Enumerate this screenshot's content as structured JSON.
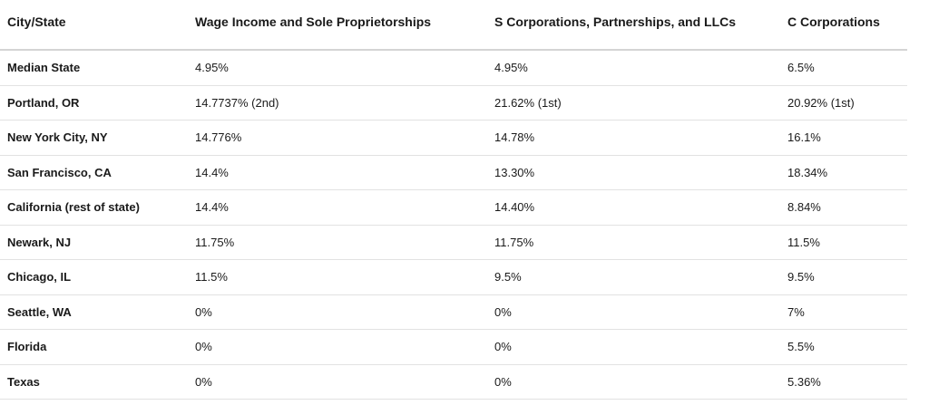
{
  "table": {
    "columns": [
      "City/State",
      "Wage Income and Sole Proprietorships",
      "S Corporations, Partnerships, and LLCs",
      "C Corporations"
    ],
    "rows": [
      [
        "Median State",
        "4.95%",
        "4.95%",
        "6.5%"
      ],
      [
        "Portland, OR",
        "14.7737% (2nd)",
        "21.62% (1st)",
        "20.92% (1st)"
      ],
      [
        "New York City, NY",
        "14.776%",
        "14.78%",
        "16.1%"
      ],
      [
        "San Francisco, CA",
        "14.4%",
        "13.30%",
        "18.34%"
      ],
      [
        "California (rest of state)",
        "14.4%",
        "14.40%",
        "8.84%"
      ],
      [
        "Newark, NJ",
        "11.75%",
        "11.75%",
        "11.5%"
      ],
      [
        "Chicago, IL",
        "11.5%",
        "9.5%",
        "9.5%"
      ],
      [
        "Seattle, WA",
        "0%",
        "0%",
        "7%"
      ],
      [
        "Florida",
        "0%",
        "0%",
        "5.5%"
      ],
      [
        "Texas",
        "0%",
        "0%",
        "5.36%"
      ]
    ]
  }
}
